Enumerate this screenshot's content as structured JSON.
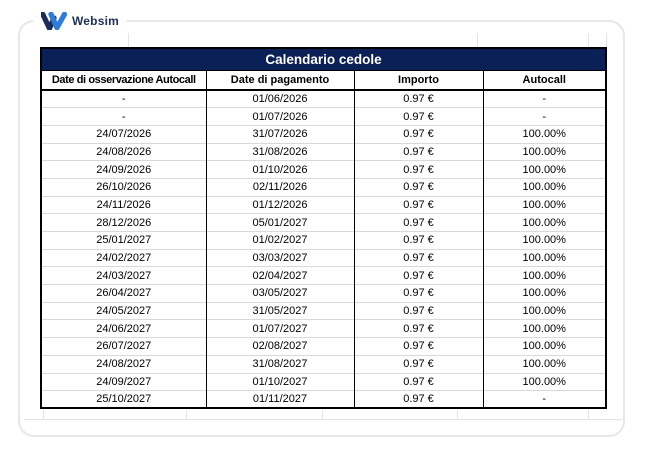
{
  "logo": {
    "brand": "Websim"
  },
  "colors": {
    "title_bg": "#0a2057",
    "title_text": "#ffffff",
    "grid_line": "#000000",
    "row_divider": "#d9d9d9",
    "card_border": "#e7e7e7",
    "logo_dark_blue": "#1b2d5e",
    "logo_light_blue": "#2d7dd8",
    "logo_text": "#1d3056"
  },
  "table": {
    "title": "Calendario cedole",
    "columns": [
      "Date di osservazione Autocall",
      "Date di pagamento",
      "Importo",
      "Autocall"
    ],
    "rows": [
      [
        "-",
        "01/06/2026",
        "0.97 €",
        "-"
      ],
      [
        "-",
        "01/07/2026",
        "0.97 €",
        "-"
      ],
      [
        "24/07/2026",
        "31/07/2026",
        "0.97 €",
        "100.00%"
      ],
      [
        "24/08/2026",
        "31/08/2026",
        "0.97 €",
        "100.00%"
      ],
      [
        "24/09/2026",
        "01/10/2026",
        "0.97 €",
        "100.00%"
      ],
      [
        "26/10/2026",
        "02/11/2026",
        "0.97 €",
        "100.00%"
      ],
      [
        "24/11/2026",
        "01/12/2026",
        "0.97 €",
        "100.00%"
      ],
      [
        "28/12/2026",
        "05/01/2027",
        "0.97 €",
        "100.00%"
      ],
      [
        "25/01/2027",
        "01/02/2027",
        "0.97 €",
        "100.00%"
      ],
      [
        "24/02/2027",
        "03/03/2027",
        "0.97 €",
        "100.00%"
      ],
      [
        "24/03/2027",
        "02/04/2027",
        "0.97 €",
        "100.00%"
      ],
      [
        "26/04/2027",
        "03/05/2027",
        "0.97 €",
        "100.00%"
      ],
      [
        "24/05/2027",
        "31/05/2027",
        "0.97 €",
        "100.00%"
      ],
      [
        "24/06/2027",
        "01/07/2027",
        "0.97 €",
        "100.00%"
      ],
      [
        "26/07/2027",
        "02/08/2027",
        "0.97 €",
        "100.00%"
      ],
      [
        "24/08/2027",
        "31/08/2027",
        "0.97 €",
        "100.00%"
      ],
      [
        "24/09/2027",
        "01/10/2027",
        "0.97 €",
        "100.00%"
      ],
      [
        "25/10/2027",
        "01/11/2027",
        "0.97 €",
        "-"
      ]
    ]
  }
}
